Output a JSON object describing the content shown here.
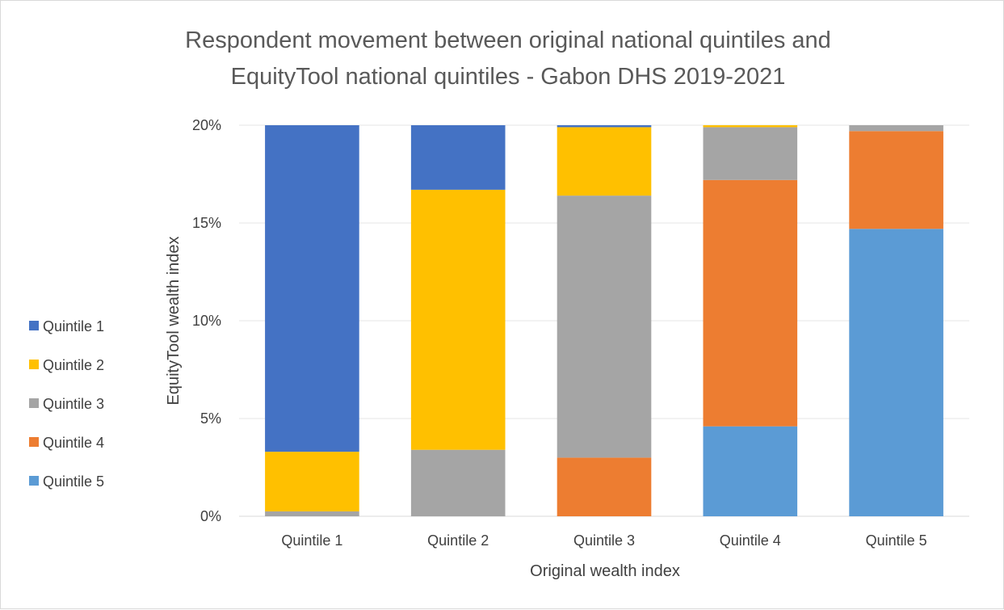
{
  "chart_data": {
    "type": "bar",
    "stacked": true,
    "title_lines": [
      "Respondent movement between original national quintiles and",
      "EquityTool national quintiles - Gabon DHS 2019-2021"
    ],
    "xlabel": "Original wealth index",
    "ylabel": "EquityTool wealth index",
    "categories": [
      "Quintile 1",
      "Quintile 2",
      "Quintile 3",
      "Quintile 4",
      "Quintile 5"
    ],
    "ylim": [
      0,
      20
    ],
    "yticks": [
      0,
      5,
      10,
      15,
      20
    ],
    "ytick_labels": [
      "0%",
      "5%",
      "10%",
      "15%",
      "20%"
    ],
    "grid": true,
    "legend_position": "left",
    "series": [
      {
        "name": "Quintile 5",
        "color": "#5B9BD5",
        "values": [
          0,
          0,
          0,
          4.6,
          14.7
        ]
      },
      {
        "name": "Quintile 4",
        "color": "#ED7D31",
        "values": [
          0,
          0,
          3.0,
          12.6,
          5.0
        ]
      },
      {
        "name": "Quintile 3",
        "color": "#A5A5A5",
        "values": [
          0.25,
          3.4,
          13.4,
          2.7,
          0.3
        ]
      },
      {
        "name": "Quintile 2",
        "color": "#FFC000",
        "values": [
          3.05,
          13.3,
          3.5,
          0.1,
          0
        ]
      },
      {
        "name": "Quintile 1",
        "color": "#4472C4",
        "values": [
          16.7,
          3.3,
          0.1,
          0,
          0
        ]
      }
    ],
    "legend_order": [
      "Quintile 1",
      "Quintile 2",
      "Quintile 3",
      "Quintile 4",
      "Quintile 5"
    ]
  }
}
